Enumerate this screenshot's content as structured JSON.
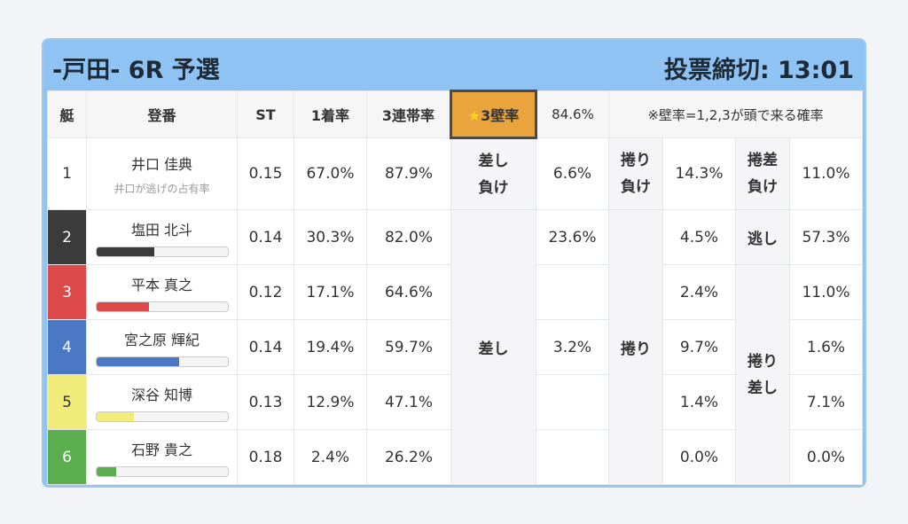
{
  "header": {
    "title": "-戸田- 6R 予選",
    "deadline": "投票締切: 13:01"
  },
  "columns": {
    "frame": "艇",
    "register": "登番",
    "st": "ST",
    "first": "1着率",
    "top3": "3連帯率",
    "wall_star": "★",
    "wall_label": "3壁率",
    "wall_value": "84.6%",
    "note": "※壁率=1,2,3が頭で来る確率"
  },
  "row1": {
    "num": "1",
    "name": "井口 佳典",
    "sub": "井口が逃げの占有率",
    "st": "0.15",
    "first": "67.0%",
    "top3": "87.9%",
    "k1_a": "差し",
    "k1_b": "負け",
    "v1": "6.6%",
    "k2_a": "捲り",
    "k2_b": "負け",
    "v2": "14.3%",
    "k3_a": "捲差",
    "k3_b": "負け",
    "v3": "11.0%"
  },
  "merged": {
    "sashi": "差し",
    "makuri": "捲り",
    "nige": "逃し",
    "makuri_sashi_a": "捲り",
    "makuri_sashi_b": "差し"
  },
  "rows": [
    {
      "num": "2",
      "name": "塩田 北斗",
      "bar": 0.44,
      "color": "#3b3b3b",
      "st": "0.14",
      "first": "30.3%",
      "top3": "82.0%",
      "sashi": "23.6%",
      "makuri": "4.5%",
      "ms": "57.3%"
    },
    {
      "num": "3",
      "name": "平本 真之",
      "bar": 0.4,
      "color": "#de4a4a",
      "st": "0.12",
      "first": "17.1%",
      "top3": "64.6%",
      "sashi": "",
      "makuri": "2.4%",
      "ms": "11.0%"
    },
    {
      "num": "4",
      "name": "宮之原 輝紀",
      "bar": 0.63,
      "color": "#4a78c4",
      "st": "0.14",
      "first": "19.4%",
      "top3": "59.7%",
      "sashi": "3.2%",
      "makuri": "9.7%",
      "ms": "1.6%"
    },
    {
      "num": "5",
      "name": "深谷 知博",
      "bar": 0.29,
      "color": "#f1ec7a",
      "st": "0.13",
      "first": "12.9%",
      "top3": "47.1%",
      "sashi": "",
      "makuri": "1.4%",
      "ms": "7.1%"
    },
    {
      "num": "6",
      "name": "石野 貴之",
      "bar": 0.15,
      "color": "#5aae4e",
      "st": "0.18",
      "first": "2.4%",
      "top3": "26.2%",
      "sashi": "",
      "makuri": "0.0%",
      "ms": "0.0%"
    }
  ]
}
